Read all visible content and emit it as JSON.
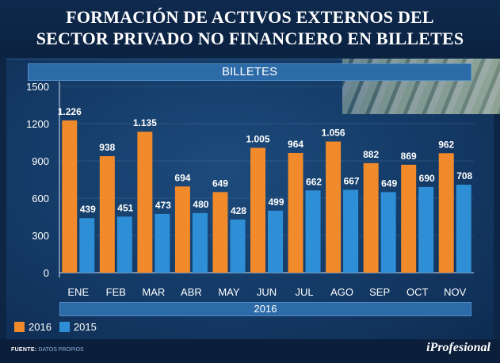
{
  "title_line1": "FORMACIÓN DE ACTIVOS EXTERNOS DEL",
  "title_line2": "SECTOR PRIVADO NO FINANCIERO EN BILLETES",
  "colors": {
    "s2016": "#f08a2a",
    "s2015": "#2f8fd6",
    "background": "#0d2646"
  },
  "chart_data": {
    "type": "bar",
    "title": "BILLETES",
    "xlabel": "2016",
    "ylabel": "",
    "ylim": [
      0,
      1500
    ],
    "yticks": [
      "0",
      "300",
      "600",
      "900",
      "1200",
      "1500"
    ],
    "categories": [
      "ENE",
      "FEB",
      "MAR",
      "ABR",
      "MAY",
      "JUN",
      "JUL",
      "AGO",
      "SEP",
      "OCT",
      "NOV"
    ],
    "series": [
      {
        "name": "2016",
        "values": [
          1226,
          938,
          1135,
          694,
          649,
          1005,
          964,
          1056,
          882,
          869,
          962
        ],
        "labels": [
          "1.226",
          "938",
          "1.135",
          "694",
          "649",
          "1.005",
          "964",
          "1.056",
          "882",
          "869",
          "962"
        ]
      },
      {
        "name": "2015",
        "values": [
          439,
          451,
          473,
          480,
          428,
          499,
          662,
          667,
          649,
          690,
          708
        ],
        "labels": [
          "439",
          "451",
          "473",
          "480",
          "428",
          "499",
          "662",
          "667",
          "649",
          "690",
          "708"
        ]
      }
    ],
    "legend": [
      "2016",
      "2015"
    ]
  },
  "footer": {
    "source_label": "FUENTE:",
    "source_text": "DATOS PROPIOS",
    "brand": "iProfesional"
  }
}
